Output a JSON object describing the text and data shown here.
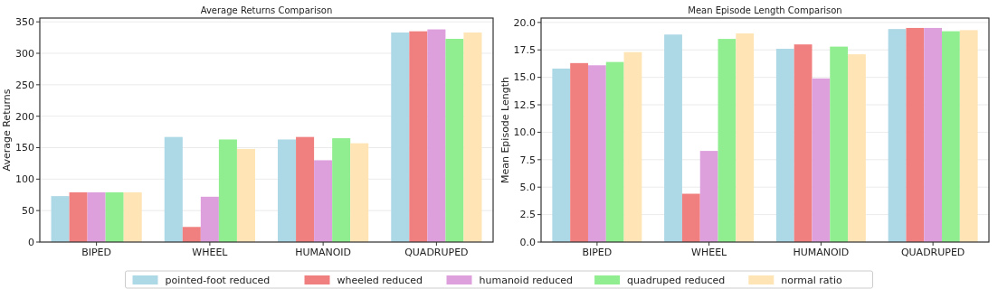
{
  "chart_data": [
    {
      "type": "bar",
      "title": "Average Returns Comparison",
      "ylabel": "Average Returns",
      "categories": [
        "BIPED",
        "WHEEL",
        "HUMANOID",
        "QUADRUPED"
      ],
      "series": [
        {
          "name": "pointed-foot reduced",
          "color": "#add8e6",
          "values": [
            73,
            167,
            163,
            333
          ]
        },
        {
          "name": "wheeled reduced",
          "color": "#f08080",
          "values": [
            79,
            24,
            167,
            335
          ]
        },
        {
          "name": "humanoid reduced",
          "color": "#dda0dd",
          "values": [
            79,
            72,
            130,
            338
          ]
        },
        {
          "name": "quadruped reduced",
          "color": "#90ee90",
          "values": [
            79,
            163,
            165,
            323
          ]
        },
        {
          "name": "normal ratio",
          "color": "#ffe4b5",
          "values": [
            79,
            148,
            157,
            333
          ]
        }
      ],
      "ylim": [
        0,
        356
      ],
      "yticks": [
        0,
        50,
        100,
        150,
        200,
        250,
        300,
        350
      ],
      "grid": "y",
      "legend": "bottom"
    },
    {
      "type": "bar",
      "title": "Mean Episode Length Comparison",
      "ylabel": "Mean Episode Length",
      "categories": [
        "BIPED",
        "WHEEL",
        "HUMANOID",
        "QUADRUPED"
      ],
      "series": [
        {
          "color": "#add8e6",
          "values": [
            15.8,
            18.9,
            17.6,
            19.4
          ]
        },
        {
          "color": "#f08080",
          "values": [
            16.3,
            4.4,
            18.0,
            19.5
          ]
        },
        {
          "color": "#dda0dd",
          "values": [
            16.1,
            8.3,
            14.9,
            19.5
          ]
        },
        {
          "color": "#90ee90",
          "values": [
            16.4,
            18.5,
            17.8,
            19.2
          ]
        },
        {
          "color": "#ffe4b5",
          "values": [
            17.3,
            19.0,
            17.1,
            19.3
          ]
        }
      ],
      "ylim": [
        0,
        20.4
      ],
      "yticks": [
        {
          "value": 0,
          "label": "0.0"
        },
        {
          "value": 2.5,
          "label": "2.5"
        },
        {
          "value": 5,
          "label": "5.0"
        },
        {
          "value": 7.5,
          "label": "7.5"
        },
        {
          "value": 10,
          "label": "10.0"
        },
        {
          "value": 12.5,
          "label": "12.5"
        },
        {
          "value": 15,
          "label": "15.0"
        },
        {
          "value": 17.5,
          "label": "17.5"
        },
        {
          "value": 20,
          "label": "20.0"
        }
      ],
      "grid": "y"
    }
  ]
}
